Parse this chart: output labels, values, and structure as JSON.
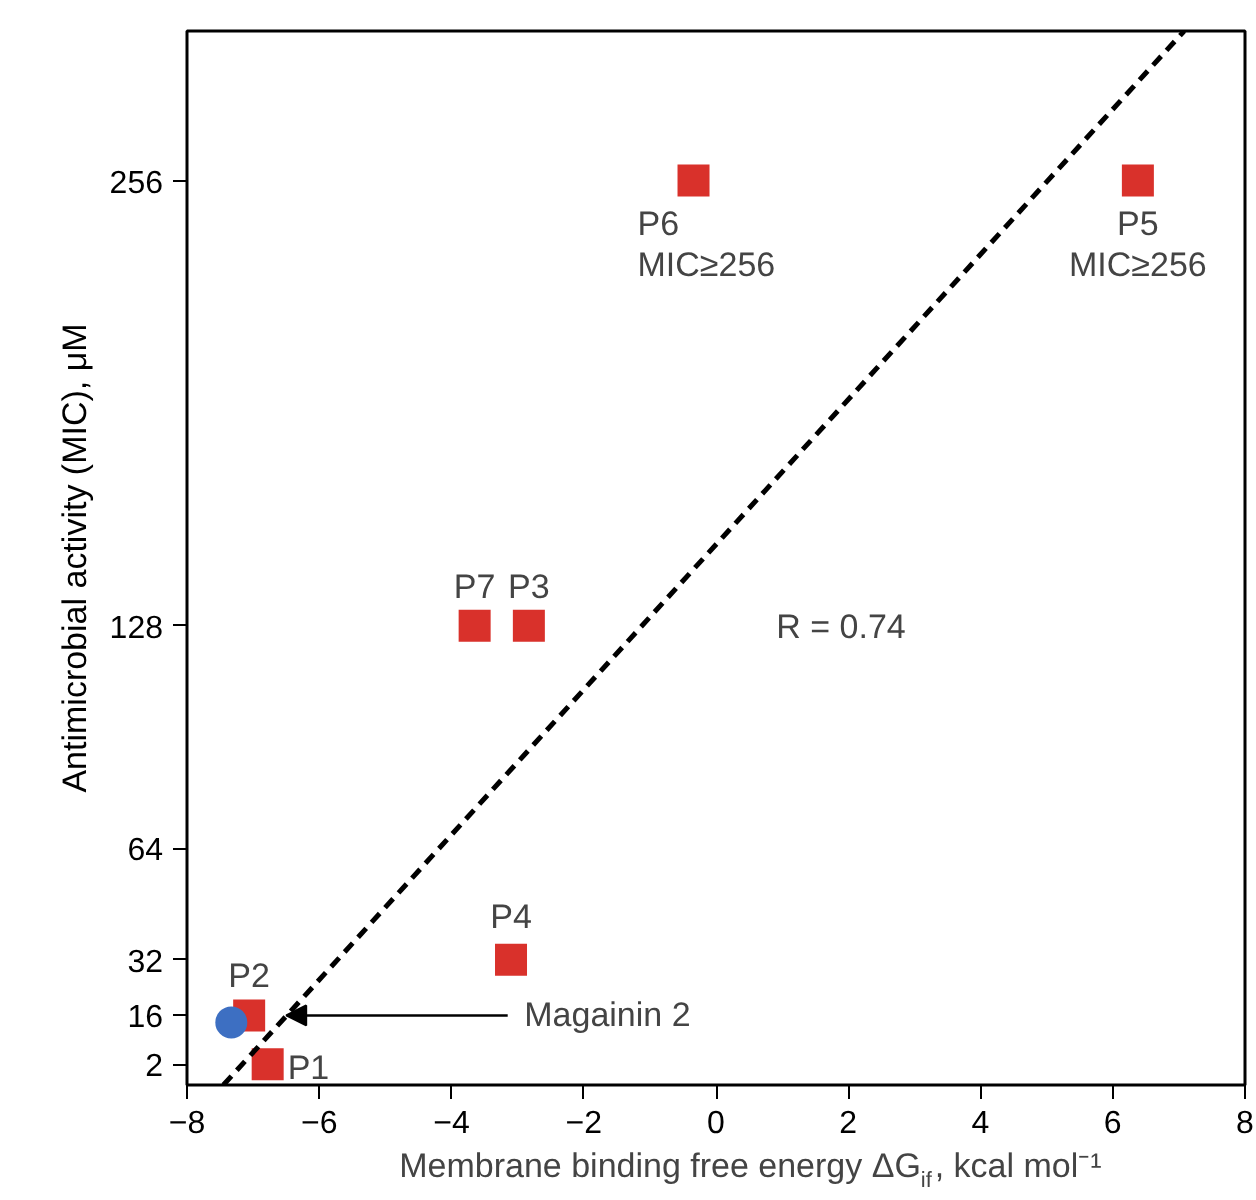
{
  "chart_data": {
    "type": "scatter",
    "xlabel": "Membrane binding free energy ΔG$_{if}$, kcal mol⁻¹",
    "ylabel": "Antimicrobial activity (MIC), μM",
    "xlim": [
      -8,
      8
    ],
    "xticks": [
      -8,
      -6,
      -4,
      -2,
      0,
      2,
      4,
      6,
      8
    ],
    "ylim": [
      -4,
      299
    ],
    "yticks": [
      2,
      16,
      32,
      64,
      128,
      256
    ],
    "grid": false,
    "series": [
      {
        "marker": "square",
        "color": "#d9312b",
        "x": [
          -6.78,
          -7.06,
          -3.1,
          -3.65,
          -2.83,
          -0.34,
          6.38
        ],
        "values": [
          2,
          16,
          32,
          128,
          128,
          256,
          256
        ]
      },
      {
        "marker": "circle",
        "color": "#3d6fc2",
        "x": [
          -7.33
        ],
        "values": [
          14
        ]
      },
      {
        "type": "line",
        "line_style": "dashed",
        "color": "#000000",
        "x": [
          -7.45,
          7.08
        ],
        "values": [
          -4,
          299
        ]
      }
    ],
    "annotations": [
      {
        "text": "P1",
        "x": -6.78,
        "y": 2
      },
      {
        "text": "P2",
        "x": -7.06,
        "y": 16
      },
      {
        "text": "P4",
        "x": -3.1,
        "y": 32
      },
      {
        "text": "P7",
        "x": -3.65,
        "y": 128
      },
      {
        "text": "P3",
        "x": -2.83,
        "y": 128
      },
      {
        "text": "P6\nMIC≥256",
        "x": -0.34,
        "y": 256
      },
      {
        "text": "P5\nMIC≥256",
        "x": 6.38,
        "y": 256
      },
      {
        "text": "Magainin 2",
        "x": -6.5,
        "y": 16
      },
      "R = 0.74"
    ]
  }
}
